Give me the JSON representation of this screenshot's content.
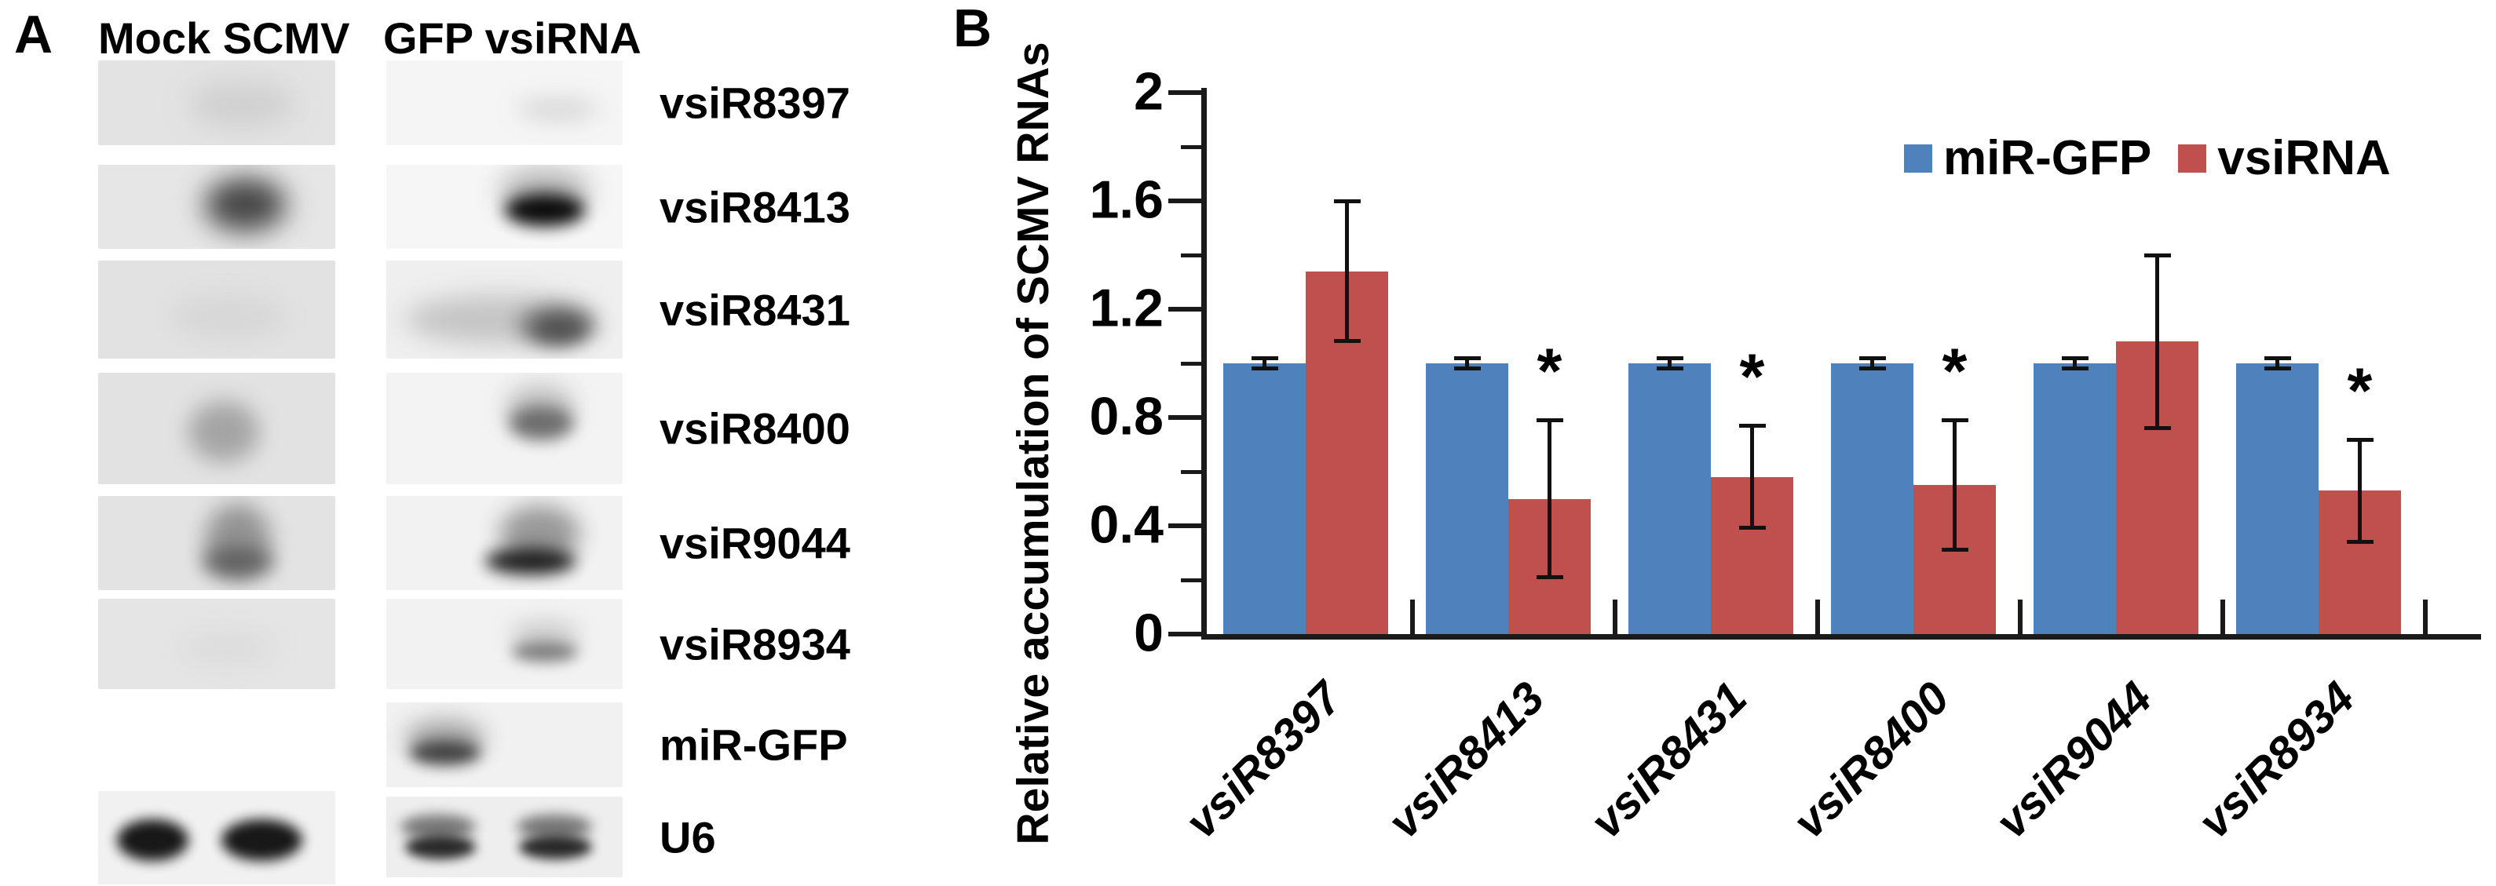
{
  "panel_a": {
    "label": "A",
    "col_headers": [
      "Mock SCMV",
      "GFP vsiRNA"
    ],
    "lane_names": [
      "Mock",
      "SCMV",
      "GFP",
      "vsiRNA"
    ],
    "rows": [
      {
        "label": "vsiR8397",
        "lane1": {
          "bg": "#e3e3e3",
          "bands": [
            {
              "x": 38,
              "y": 25,
              "w": 45,
              "h": 55,
              "c": "#cccccc",
              "blur": 18,
              "o": 0.85
            }
          ]
        },
        "lane2": {
          "bg": "#f5f5f5",
          "bands": [
            {
              "x": 55,
              "y": 45,
              "w": 35,
              "h": 25,
              "c": "#d2d2d2",
              "blur": 14,
              "o": 0.9
            }
          ]
        }
      },
      {
        "label": "vsiR8413",
        "lane1": {
          "bg": "#e6e6e6",
          "bands": [
            {
              "x": 42,
              "y": 8,
              "w": 40,
              "h": 80,
              "c": "#9c9c9c",
              "blur": 16,
              "o": 0.9
            },
            {
              "x": 48,
              "y": 22,
              "w": 28,
              "h": 50,
              "c": "#3f3f3f",
              "blur": 14,
              "o": 0.9
            }
          ]
        },
        "lane2": {
          "bg": "#f6f6f6",
          "bands": [
            {
              "x": 48,
              "y": 5,
              "w": 38,
              "h": 55,
              "c": "#aaaaaa",
              "blur": 16,
              "o": 0.85
            },
            {
              "x": 50,
              "y": 35,
              "w": 34,
              "h": 38,
              "c": "#000000",
              "blur": 10,
              "o": 0.95
            }
          ]
        }
      },
      {
        "label": "vsiR8431",
        "lane1": {
          "bg": "#e2e2e2",
          "bands": [
            {
              "x": 30,
              "y": 35,
              "w": 50,
              "h": 45,
              "c": "#d4d4d4",
              "blur": 16,
              "o": 0.8
            }
          ]
        },
        "lane2": {
          "bg": "#efefef",
          "bands": [
            {
              "x": 8,
              "y": 35,
              "w": 80,
              "h": 50,
              "c": "#bdbdbd",
              "blur": 16,
              "o": 0.85
            },
            {
              "x": 55,
              "y": 45,
              "w": 34,
              "h": 42,
              "c": "#7d7d7d",
              "blur": 12,
              "o": 0.9
            },
            {
              "x": 62,
              "y": 55,
              "w": 22,
              "h": 28,
              "c": "#4a4a4a",
              "blur": 10,
              "o": 0.85
            }
          ]
        }
      },
      {
        "label": "vsiR8400",
        "lane1": {
          "bg": "#e2e2e2",
          "bands": [
            {
              "x": 38,
              "y": 25,
              "w": 30,
              "h": 55,
              "c": "#9a9a9a",
              "blur": 14,
              "o": 0.85
            }
          ]
        },
        "lane2": {
          "bg": "#f3f3f3",
          "bands": [
            {
              "x": 50,
              "y": 10,
              "w": 30,
              "h": 45,
              "c": "#bbbbbb",
              "blur": 14,
              "o": 0.85
            },
            {
              "x": 52,
              "y": 30,
              "w": 27,
              "h": 30,
              "c": "#636363",
              "blur": 10,
              "o": 0.9
            }
          ]
        }
      },
      {
        "label": "vsiR9044",
        "lane1": {
          "bg": "#e3e3e3",
          "bands": [
            {
              "x": 45,
              "y": 8,
              "w": 28,
              "h": 80,
              "c": "#8a8a8a",
              "blur": 14,
              "o": 0.9
            },
            {
              "x": 44,
              "y": 55,
              "w": 30,
              "h": 30,
              "c": "#565656",
              "blur": 12,
              "o": 0.85
            }
          ]
        },
        "lane2": {
          "bg": "#f2f2f2",
          "bands": [
            {
              "x": 48,
              "y": 10,
              "w": 34,
              "h": 60,
              "c": "#8f8f8f",
              "blur": 14,
              "o": 0.9
            },
            {
              "x": 42,
              "y": 55,
              "w": 38,
              "h": 28,
              "c": "#161616",
              "blur": 10,
              "o": 0.95
            }
          ]
        }
      },
      {
        "label": "vsiR8934",
        "lane1": {
          "bg": "#e5e5e5",
          "bands": [
            {
              "x": 35,
              "y": 35,
              "w": 40,
              "h": 40,
              "c": "#dadada",
              "blur": 16,
              "o": 0.8
            }
          ]
        },
        "lane2": {
          "bg": "#f2f2f2",
          "bands": [
            {
              "x": 52,
              "y": 25,
              "w": 30,
              "h": 30,
              "c": "#c2c2c2",
              "blur": 14,
              "o": 0.85
            },
            {
              "x": 53,
              "y": 48,
              "w": 28,
              "h": 22,
              "c": "#6f6f6f",
              "blur": 9,
              "o": 0.9
            }
          ]
        }
      },
      {
        "label": "miR-GFP",
        "lane1": null,
        "lane2": {
          "bg": "#f1f1f1",
          "bands": [
            {
              "x": 8,
              "y": 20,
              "w": 34,
              "h": 45,
              "c": "#9e9e9e",
              "blur": 14,
              "o": 0.9
            },
            {
              "x": 10,
              "y": 45,
              "w": 30,
              "h": 28,
              "c": "#3a3a3a",
              "blur": 9,
              "o": 0.95
            }
          ]
        }
      },
      {
        "label": "U6",
        "lane1": {
          "bg": "#f1f1f1",
          "bands": [
            {
              "x": 8,
              "y": 30,
              "w": 30,
              "h": 45,
              "c": "#111111",
              "blur": 8,
              "o": 0.97
            },
            {
              "x": 52,
              "y": 30,
              "w": 34,
              "h": 45,
              "c": "#111111",
              "blur": 8,
              "o": 0.97
            }
          ]
        },
        "lane2": {
          "bg": "#eeeeee",
          "bands": [
            {
              "x": 6,
              "y": 22,
              "w": 32,
              "h": 30,
              "c": "#6a6a6a",
              "blur": 8,
              "o": 0.9
            },
            {
              "x": 8,
              "y": 48,
              "w": 30,
              "h": 30,
              "c": "#1f1f1f",
              "blur": 7,
              "o": 0.95
            },
            {
              "x": 55,
              "y": 22,
              "w": 32,
              "h": 30,
              "c": "#6a6a6a",
              "blur": 8,
              "o": 0.9
            },
            {
              "x": 56,
              "y": 48,
              "w": 31,
              "h": 30,
              "c": "#1f1f1f",
              "blur": 7,
              "o": 0.95
            }
          ]
        }
      }
    ]
  },
  "panel_b": {
    "label": "B"
  },
  "chart_data": {
    "type": "bar",
    "title": "",
    "categories": [
      "vsiR8397",
      "vsiR8413",
      "vsiR8431",
      "vsiR8400",
      "vsiR9044",
      "vsiR8934"
    ],
    "series": [
      {
        "name": "miR-GFP",
        "color": "#4f81bd",
        "values": [
          1.0,
          1.0,
          1.0,
          1.0,
          1.0,
          1.0
        ],
        "errors": [
          0.02,
          0.02,
          0.02,
          0.02,
          0.02,
          0.02
        ],
        "significant": [
          false,
          false,
          false,
          false,
          false,
          false
        ]
      },
      {
        "name": "vsiRNA",
        "color": "#c0504d",
        "values": [
          1.34,
          0.5,
          0.58,
          0.55,
          1.08,
          0.53
        ],
        "errors": [
          0.26,
          0.29,
          0.19,
          0.24,
          0.32,
          0.19
        ],
        "significant": [
          false,
          true,
          true,
          true,
          false,
          true
        ]
      }
    ],
    "xlabel": "",
    "ylabel": "Relative accumulation of SCMV RNAs",
    "ylim": [
      0,
      2
    ],
    "yticks": [
      0,
      0.4,
      0.8,
      1.2,
      1.6,
      2
    ],
    "minor_tick_step": 0.2,
    "significance_marker": "*",
    "legend_position": "top-right",
    "grid": false,
    "axis_color": "#1a1a1a"
  }
}
